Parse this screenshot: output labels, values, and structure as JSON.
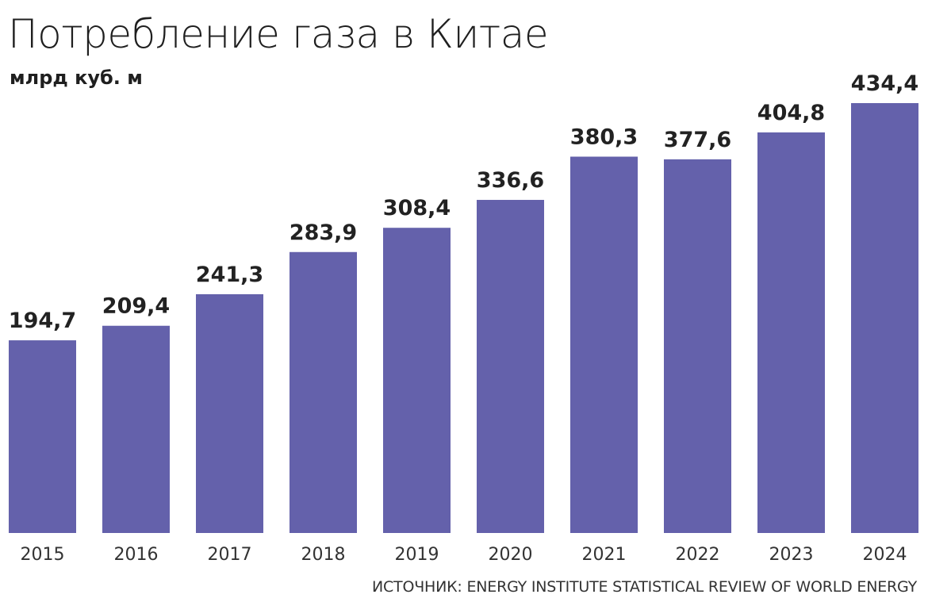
{
  "chart_data": {
    "type": "bar",
    "title": "Потребление газа в Китае",
    "subtitle": "млрд куб. м",
    "categories": [
      "2015",
      "2016",
      "2017",
      "2018",
      "2019",
      "2020",
      "2021",
      "2022",
      "2023",
      "2024"
    ],
    "values": [
      194.7,
      209.4,
      241.3,
      283.9,
      308.4,
      336.6,
      380.3,
      377.6,
      404.8,
      434.4
    ],
    "value_labels": [
      "194,7",
      "209,4",
      "241,3",
      "283,9",
      "308,4",
      "336,6",
      "380,3",
      "377,6",
      "404,8",
      "434,4"
    ],
    "xlabel": "",
    "ylabel": "",
    "ylim": [
      0,
      434.4
    ],
    "grid": false,
    "legend": "none",
    "bar_color": "#6461ab",
    "source": "ИСТОЧНИК: ENERGY INSTITUTE STATISTICAL REVIEW OF WORLD ENERGY"
  }
}
